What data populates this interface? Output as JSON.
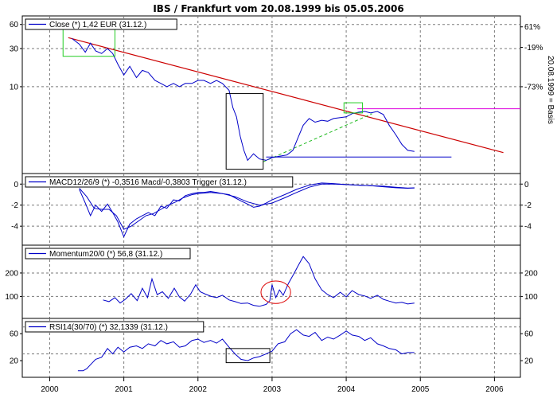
{
  "chart_data": {
    "type": "line",
    "title": "IBS / Frankfurt vom 20.08.1999 bis 05.05.2006",
    "x_axis": {
      "ticks": [
        "2000",
        "2001",
        "2002",
        "2003",
        "2004",
        "2005",
        "2006"
      ],
      "range": [
        1999.63,
        2006.35
      ]
    },
    "right_axis_label": "20.08.1999 = Basis",
    "panels": [
      {
        "id": "close",
        "legend": "Close (*) 1,42 EUR (31.12.)",
        "scale": "log",
        "ylim": [
          0.9,
          70
        ],
        "left_ticks": [
          {
            "v": 60,
            "t": "60"
          },
          {
            "v": 30,
            "t": "30"
          },
          {
            "v": 10,
            "t": "10"
          }
        ],
        "right_ticks": [
          {
            "v": 56,
            "t": "61%"
          },
          {
            "v": 31,
            "t": "-19%"
          },
          {
            "v": 10,
            "t": "-73%"
          }
        ],
        "grid": [
          60,
          30,
          10
        ],
        "series": {
          "color": "#0000c8",
          "x": [
            2000.3,
            2000.4,
            2000.48,
            2000.55,
            2000.62,
            2000.7,
            2000.78,
            2000.85,
            2000.92,
            2001.0,
            2001.08,
            2001.17,
            2001.25,
            2001.33,
            2001.42,
            2001.5,
            2001.58,
            2001.67,
            2001.75,
            2001.83,
            2001.92,
            2002.0,
            2002.08,
            2002.17,
            2002.25,
            2002.33,
            2002.42,
            2002.47,
            2002.52,
            2002.57,
            2002.62,
            2002.67,
            2002.75,
            2002.83,
            2002.92,
            2003.0,
            2003.1,
            2003.2,
            2003.28,
            2003.35,
            2003.42,
            2003.5,
            2003.58,
            2003.67,
            2003.75,
            2003.83,
            2003.92,
            2004.0,
            2004.08,
            2004.17,
            2004.25,
            2004.33,
            2004.42,
            2004.5,
            2004.58,
            2004.67,
            2004.75,
            2004.83,
            2004.92
          ],
          "y": [
            40,
            34,
            27,
            35,
            28,
            26,
            30,
            26,
            19,
            14,
            18,
            13,
            16,
            15,
            12,
            11,
            10,
            11,
            10,
            11,
            11,
            12,
            12,
            11,
            12,
            11,
            9,
            5.5,
            4.2,
            2.4,
            1.6,
            1.2,
            1.45,
            1.25,
            1.2,
            1.3,
            1.35,
            1.4,
            1.6,
            2.3,
            3.3,
            4.0,
            3.6,
            3.8,
            3.7,
            4.0,
            4.1,
            4.2,
            4.6,
            4.8,
            4.9,
            4.7,
            4.9,
            4.5,
            3.3,
            2.5,
            1.9,
            1.6,
            1.55
          ]
        },
        "resistance_line": {
          "color": "#cc0000",
          "x": [
            2000.25,
            2006.12
          ],
          "y": [
            41,
            1.5
          ]
        },
        "support_line": {
          "color": "#0000c8",
          "x": [
            2002.92,
            2005.42
          ],
          "y": [
            1.32,
            1.32
          ]
        },
        "trend_dashed": {
          "color": "#22bb22",
          "x": [
            2002.88,
            2004.35
          ],
          "y": [
            1.15,
            4.6
          ]
        },
        "horizontal_magenta": {
          "color": "#dd00dd",
          "x": [
            2004.15,
            2006.35
          ],
          "y": [
            5.3,
            5.3
          ]
        },
        "green_boxes": [
          {
            "x1": 2000.18,
            "x2": 2000.88,
            "y1": 24,
            "y2": 55
          },
          {
            "x1": 2003.97,
            "x2": 2004.22,
            "y1": 4.7,
            "y2": 6.3
          }
        ],
        "black_boxes": [
          {
            "x1": 2002.38,
            "x2": 2002.88,
            "y1": 0.93,
            "y2": 8.2
          }
        ]
      },
      {
        "id": "macd",
        "legend": "MACD12/26/9 (*) -0,3516 Macd/-0,3803 Trigger (31.12.)",
        "scale": "linear",
        "ylim": [
          -5.5,
          0.7
        ],
        "left_ticks": [
          {
            "v": 0,
            "t": "0"
          },
          {
            "v": -2,
            "t": "-2"
          },
          {
            "v": -4,
            "t": "-4"
          }
        ],
        "right_ticks": [
          {
            "v": 0,
            "t": "0"
          },
          {
            "v": -2,
            "t": "-2"
          },
          {
            "v": -4,
            "t": "-4"
          }
        ],
        "grid": [
          0,
          -2,
          -4
        ],
        "macd": {
          "color": "#0000c8",
          "x": [
            2000.4,
            2000.48,
            2000.55,
            2000.62,
            2000.7,
            2000.78,
            2000.85,
            2000.92,
            2001.0,
            2001.08,
            2001.17,
            2001.25,
            2001.33,
            2001.42,
            2001.5,
            2001.58,
            2001.67,
            2001.75,
            2001.83,
            2001.92,
            2002.0,
            2002.08,
            2002.17,
            2002.25,
            2002.33,
            2002.42,
            2002.5,
            2002.58,
            2002.67,
            2002.75,
            2002.83,
            2002.92,
            2003.0,
            2003.17,
            2003.33,
            2003.5,
            2003.67,
            2003.83,
            2004.0,
            2004.17,
            2004.33,
            2004.5,
            2004.67,
            2004.83,
            2004.92
          ],
          "y": [
            -0.5,
            -1.8,
            -3.0,
            -2.0,
            -2.6,
            -1.9,
            -2.7,
            -3.6,
            -5.0,
            -3.8,
            -3.3,
            -3.0,
            -2.7,
            -3.0,
            -2.1,
            -2.3,
            -1.5,
            -1.6,
            -1.1,
            -0.9,
            -0.8,
            -0.8,
            -0.7,
            -0.8,
            -0.9,
            -1.0,
            -1.3,
            -1.6,
            -1.9,
            -2.2,
            -2.1,
            -1.8,
            -1.5,
            -1.0,
            -0.5,
            -0.1,
            0.1,
            0.05,
            -0.05,
            -0.1,
            -0.15,
            -0.25,
            -0.35,
            -0.4,
            -0.35
          ]
        },
        "trigger": {
          "color": "#0000c8",
          "x": [
            2000.4,
            2000.5,
            2000.6,
            2000.7,
            2000.8,
            2000.9,
            2001.0,
            2001.1,
            2001.2,
            2001.3,
            2001.4,
            2001.5,
            2001.6,
            2001.7,
            2001.8,
            2001.92,
            2002.0,
            2002.17,
            2002.33,
            2002.5,
            2002.67,
            2002.83,
            2003.0,
            2003.17,
            2003.33,
            2003.5,
            2003.67,
            2003.83,
            2004.0,
            2004.17,
            2004.33,
            2004.5,
            2004.67,
            2004.83,
            2004.92
          ],
          "y": [
            -0.4,
            -1.2,
            -2.3,
            -2.4,
            -2.4,
            -3.0,
            -4.3,
            -4.0,
            -3.5,
            -3.0,
            -2.8,
            -2.4,
            -2.0,
            -1.7,
            -1.3,
            -1.0,
            -0.9,
            -0.8,
            -0.9,
            -1.2,
            -1.7,
            -2.0,
            -1.8,
            -1.3,
            -0.8,
            -0.3,
            0.0,
            0.0,
            -0.05,
            -0.1,
            -0.15,
            -0.2,
            -0.3,
            -0.38,
            -0.38
          ]
        }
      },
      {
        "id": "momentum",
        "legend": "Momentum20/0 (*) 56,8 (31.12.)",
        "scale": "linear",
        "ylim": [
          20,
          305
        ],
        "left_ticks": [
          {
            "v": 200,
            "t": "200"
          },
          {
            "v": 100,
            "t": "100"
          }
        ],
        "right_ticks": [
          {
            "v": 200,
            "t": "200"
          },
          {
            "v": 100,
            "t": "100"
          }
        ],
        "grid": [
          200,
          100
        ],
        "red_circle": {
          "color": "#dd0000",
          "cx": 2003.05,
          "cy": 118,
          "rx": 0.2,
          "ry": 48
        },
        "series": {
          "color": "#0000c8",
          "x": [
            2000.72,
            2000.8,
            2000.88,
            2000.95,
            2001.02,
            2001.1,
            2001.18,
            2001.25,
            2001.32,
            2001.38,
            2001.45,
            2001.52,
            2001.6,
            2001.68,
            2001.75,
            2001.82,
            2001.9,
            2001.97,
            2002.03,
            2002.1,
            2002.18,
            2002.25,
            2002.33,
            2002.42,
            2002.5,
            2002.58,
            2002.67,
            2002.75,
            2002.83,
            2002.92,
            2002.97,
            2003.0,
            2003.05,
            2003.1,
            2003.15,
            2003.22,
            2003.3,
            2003.35,
            2003.42,
            2003.5,
            2003.58,
            2003.67,
            2003.75,
            2003.83,
            2003.92,
            2004.0,
            2004.08,
            2004.17,
            2004.25,
            2004.33,
            2004.42,
            2004.5,
            2004.58,
            2004.67,
            2004.75,
            2004.83,
            2004.92
          ],
          "y": [
            85,
            78,
            95,
            72,
            88,
            112,
            82,
            135,
            95,
            175,
            108,
            120,
            92,
            135,
            98,
            80,
            110,
            150,
            120,
            110,
            100,
            95,
            105,
            85,
            78,
            70,
            72,
            62,
            58,
            66,
            82,
            150,
            95,
            128,
            105,
            155,
            200,
            230,
            270,
            240,
            175,
            128,
            108,
            95,
            118,
            98,
            125,
            108,
            102,
            92,
            105,
            88,
            80,
            72,
            75,
            68,
            72
          ]
        }
      },
      {
        "id": "rsi",
        "legend": "RSI14(30/70) (*) 32,1339 (31.12.)",
        "scale": "linear",
        "ylim": [
          0,
          78
        ],
        "left_ticks": [
          {
            "v": 60,
            "t": "60"
          },
          {
            "v": 20,
            "t": "20"
          }
        ],
        "right_ticks": [
          {
            "v": 60,
            "t": "60"
          },
          {
            "v": 20,
            "t": "20"
          }
        ],
        "grid": [
          70,
          30
        ],
        "black_box": {
          "x1": 2002.38,
          "x2": 2002.97,
          "y1": 17,
          "y2": 38
        },
        "series": {
          "color": "#0000c8",
          "x": [
            2000.38,
            2000.45,
            2000.5,
            2000.55,
            2000.62,
            2000.7,
            2000.78,
            2000.85,
            2000.92,
            2001.0,
            2001.08,
            2001.17,
            2001.25,
            2001.33,
            2001.42,
            2001.5,
            2001.58,
            2001.67,
            2001.75,
            2001.83,
            2001.92,
            2002.0,
            2002.08,
            2002.17,
            2002.25,
            2002.33,
            2002.42,
            2002.5,
            2002.58,
            2002.67,
            2002.75,
            2002.83,
            2002.92,
            2003.0,
            2003.08,
            2003.17,
            2003.25,
            2003.33,
            2003.42,
            2003.5,
            2003.58,
            2003.67,
            2003.75,
            2003.83,
            2003.92,
            2004.0,
            2004.08,
            2004.17,
            2004.25,
            2004.33,
            2004.42,
            2004.5,
            2004.58,
            2004.67,
            2004.75,
            2004.83,
            2004.92
          ],
          "y": [
            5,
            5,
            8,
            14,
            22,
            25,
            38,
            30,
            40,
            33,
            40,
            42,
            38,
            45,
            42,
            50,
            45,
            48,
            40,
            42,
            50,
            52,
            47,
            50,
            46,
            52,
            40,
            30,
            22,
            20,
            24,
            26,
            30,
            34,
            45,
            48,
            60,
            66,
            58,
            56,
            62,
            50,
            55,
            52,
            58,
            64,
            58,
            56,
            50,
            54,
            45,
            42,
            38,
            36,
            30,
            32,
            32
          ]
        }
      }
    ]
  }
}
